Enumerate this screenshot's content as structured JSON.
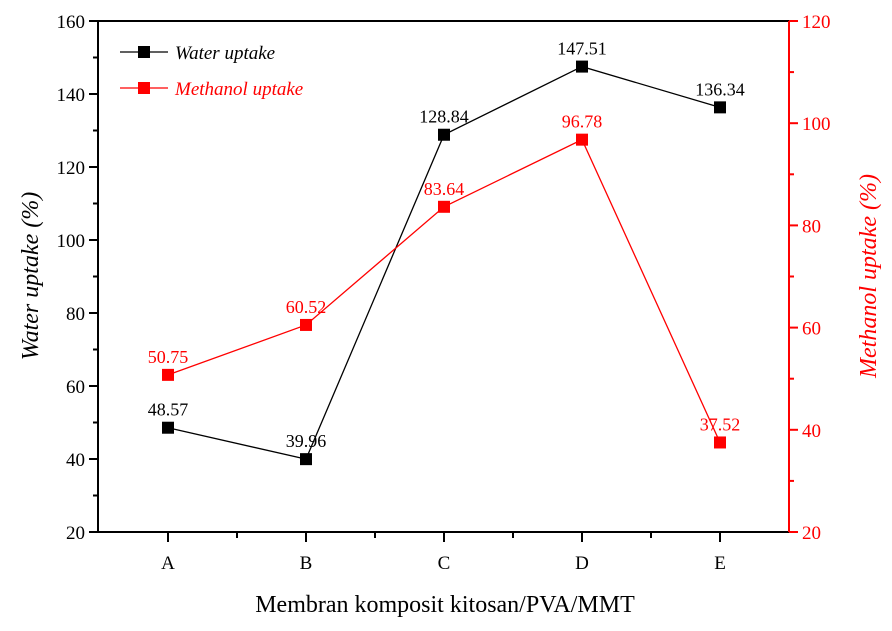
{
  "chart_data": {
    "type": "line",
    "title": "",
    "xlabel": "Membran komposit kitosan/PVA/MMT",
    "ylabel": "Water uptake (%)",
    "y2label": "Methanol uptake (%)",
    "categories": [
      "A",
      "B",
      "C",
      "D",
      "E"
    ],
    "ylim": [
      20,
      160
    ],
    "y2lim": [
      20,
      120
    ],
    "yticks": [
      "20",
      "40",
      "60",
      "80",
      "100",
      "120",
      "140",
      "160"
    ],
    "y2ticks": [
      "20",
      "40",
      "60",
      "80",
      "100",
      "120"
    ],
    "grid": false,
    "legend_position": "top-left",
    "series": [
      {
        "name": "Water uptake",
        "axis": "left",
        "color": "#000000",
        "marker": "square",
        "values": [
          48.57,
          39.96,
          128.84,
          147.51,
          136.34
        ],
        "labels": [
          "48.57",
          "39.96",
          "128.84",
          "147.51",
          "136.34"
        ]
      },
      {
        "name": "Methanol uptake",
        "axis": "right",
        "color": "#ff0000",
        "marker": "square",
        "values": [
          50.75,
          60.52,
          83.64,
          96.78,
          37.52
        ],
        "labels": [
          "50.75",
          "60.52",
          "83.64",
          "96.78",
          "37.52"
        ]
      }
    ]
  }
}
